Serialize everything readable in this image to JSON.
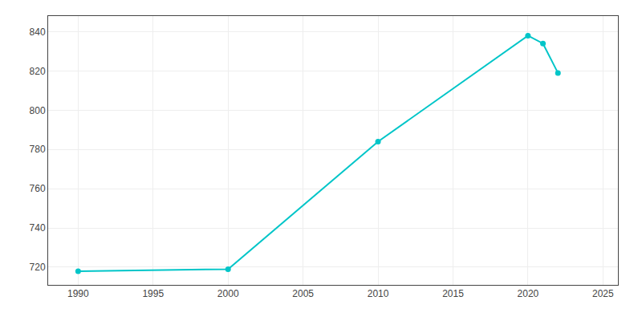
{
  "chart_data": {
    "type": "line",
    "x": [
      1990,
      2000,
      2010,
      2020,
      2021,
      2022
    ],
    "values": [
      718,
      719,
      784,
      838,
      834,
      819
    ],
    "color": "#00C5C8",
    "marker": "circle",
    "xlim": [
      1988,
      2026
    ],
    "ylim": [
      711,
      848
    ],
    "xticks": [
      1990,
      1995,
      2000,
      2005,
      2010,
      2015,
      2020,
      2025
    ],
    "yticks": [
      720,
      740,
      760,
      780,
      800,
      820,
      840
    ],
    "grid": true
  }
}
